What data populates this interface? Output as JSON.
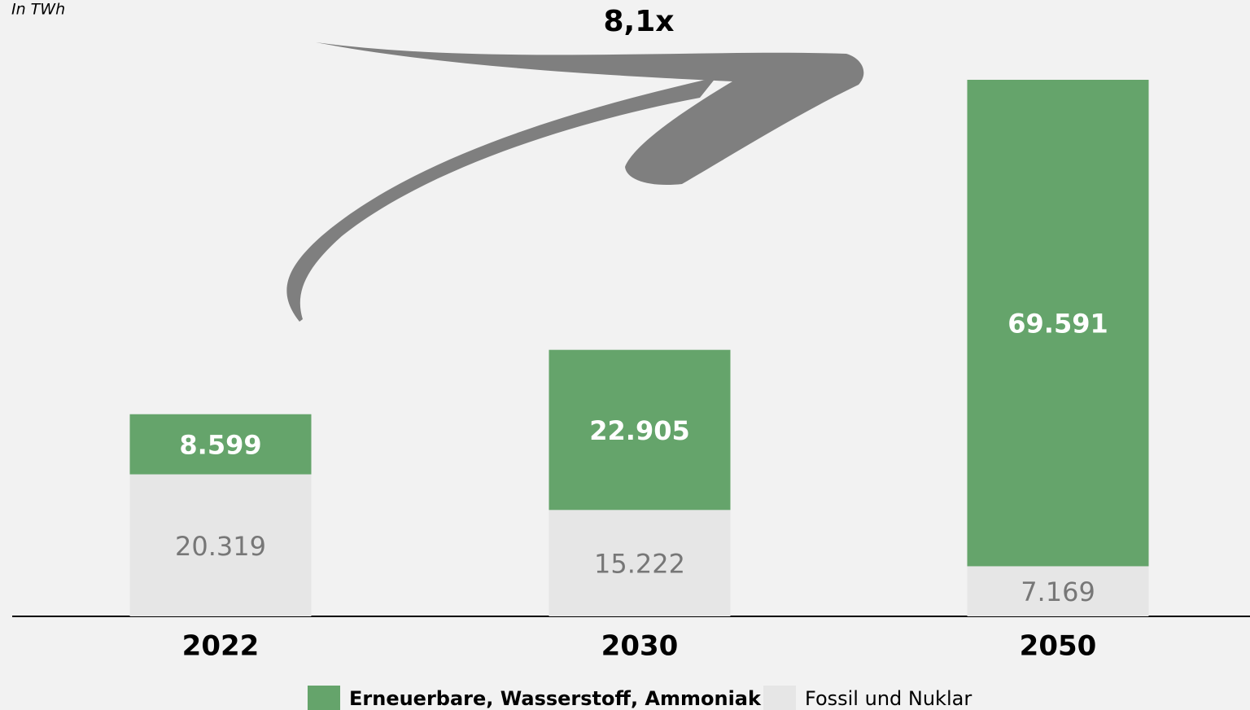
{
  "chart_data": {
    "type": "stacked_bar",
    "unit_label": "In TWh",
    "annotation": "8,1x",
    "categories": [
      "2022",
      "2030",
      "2050"
    ],
    "series": [
      {
        "name": "Erneuerbare, Wasserstoff, Ammoniak",
        "color": "#65a46b",
        "values": [
          8599,
          22905,
          69591
        ],
        "value_labels": [
          "8.599",
          "22.905",
          "69.591"
        ]
      },
      {
        "name": "Fossil und Nuklar",
        "color": "#e6e6e6",
        "values": [
          20319,
          15222,
          7169
        ],
        "value_labels": [
          "20.319",
          "15.222",
          "7.169"
        ]
      }
    ],
    "legend": "bottom"
  }
}
